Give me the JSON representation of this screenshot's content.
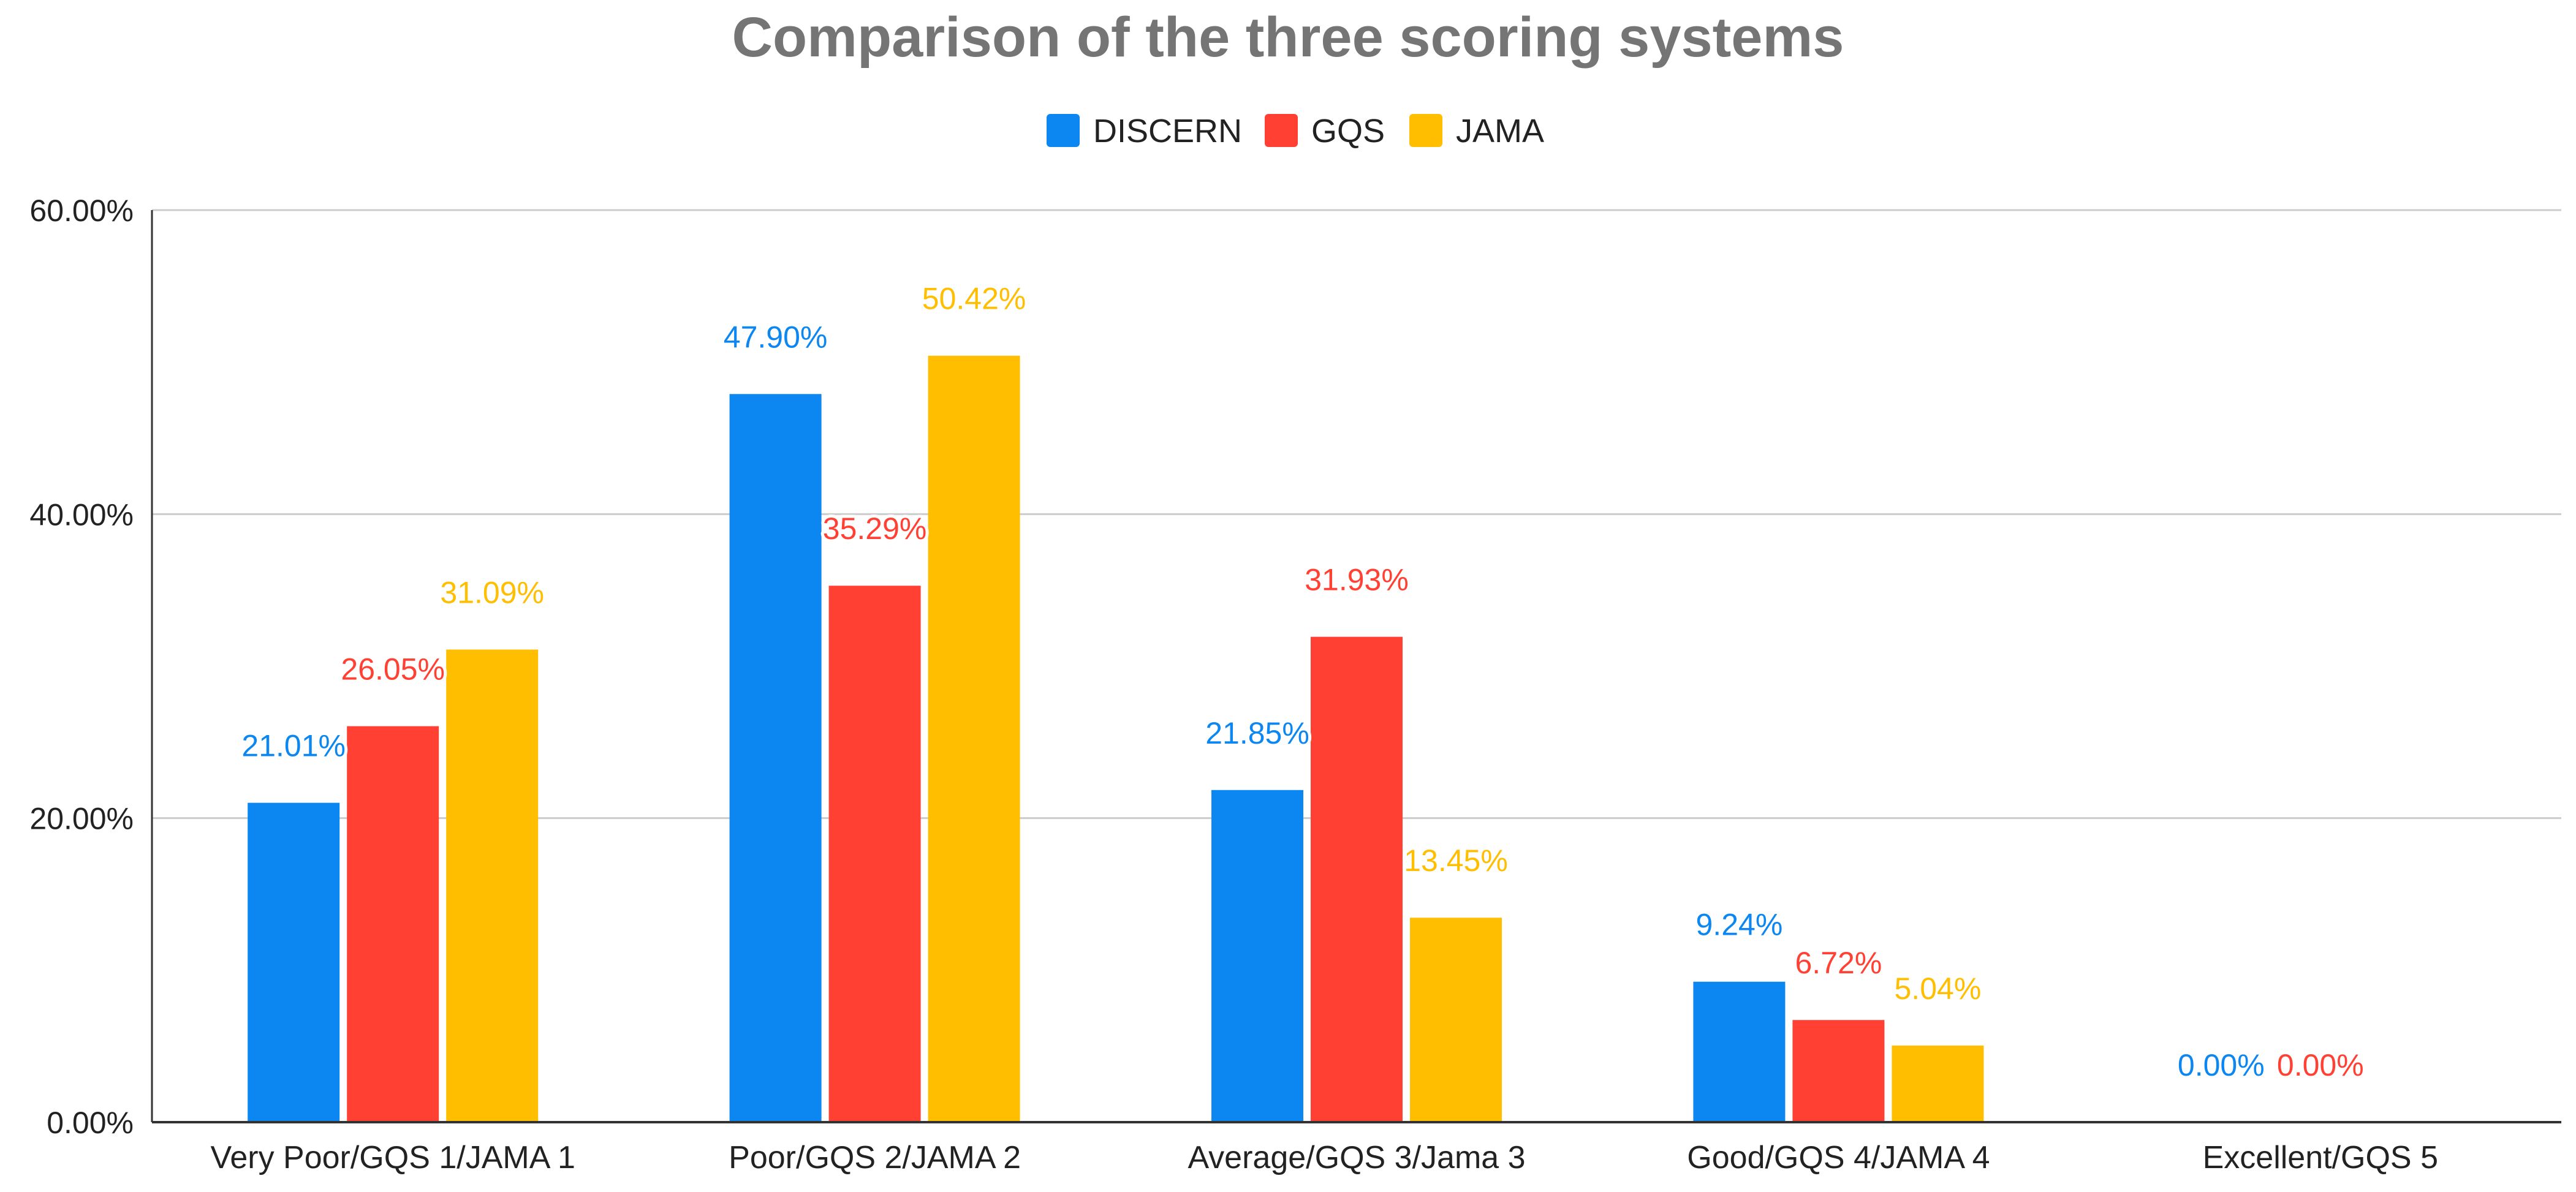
{
  "chart_data": {
    "type": "bar",
    "title": "Comparison of the three scoring systems",
    "xlabel": "",
    "ylabel": "",
    "categories": [
      "Very Poor/GQS 1/JAMA 1",
      "Poor/GQS 2/JAMA 2",
      "Average/GQS 3/Jama 3",
      "Good/GQS 4/JAMA 4",
      "Excellent/GQS 5"
    ],
    "series": [
      {
        "name": "DISCERN",
        "color": "#0c87f2",
        "values": [
          21.01,
          47.9,
          21.85,
          9.24,
          0.0
        ],
        "labels": [
          "21.01%",
          "47.90%",
          "21.85%",
          "9.24%",
          "0.00%"
        ]
      },
      {
        "name": "GQS",
        "color": "#ff4033",
        "values": [
          26.05,
          35.29,
          31.93,
          6.72,
          0.0
        ],
        "labels": [
          "26.05%",
          "35.29%",
          "31.93%",
          "6.72%",
          "0.00%"
        ]
      },
      {
        "name": "JAMA",
        "color": "#ffbe00",
        "values": [
          31.09,
          50.42,
          13.45,
          5.04,
          null
        ],
        "labels": [
          "31.09%",
          "50.42%",
          "13.45%",
          "5.04%",
          ""
        ]
      }
    ],
    "ylim": [
      0,
      60
    ],
    "yticks": [
      0,
      20,
      40,
      60
    ],
    "ytick_labels": [
      "0.00%",
      "20.00%",
      "40.00%",
      "60.00%"
    ],
    "grid": true,
    "legend": "top-center"
  }
}
